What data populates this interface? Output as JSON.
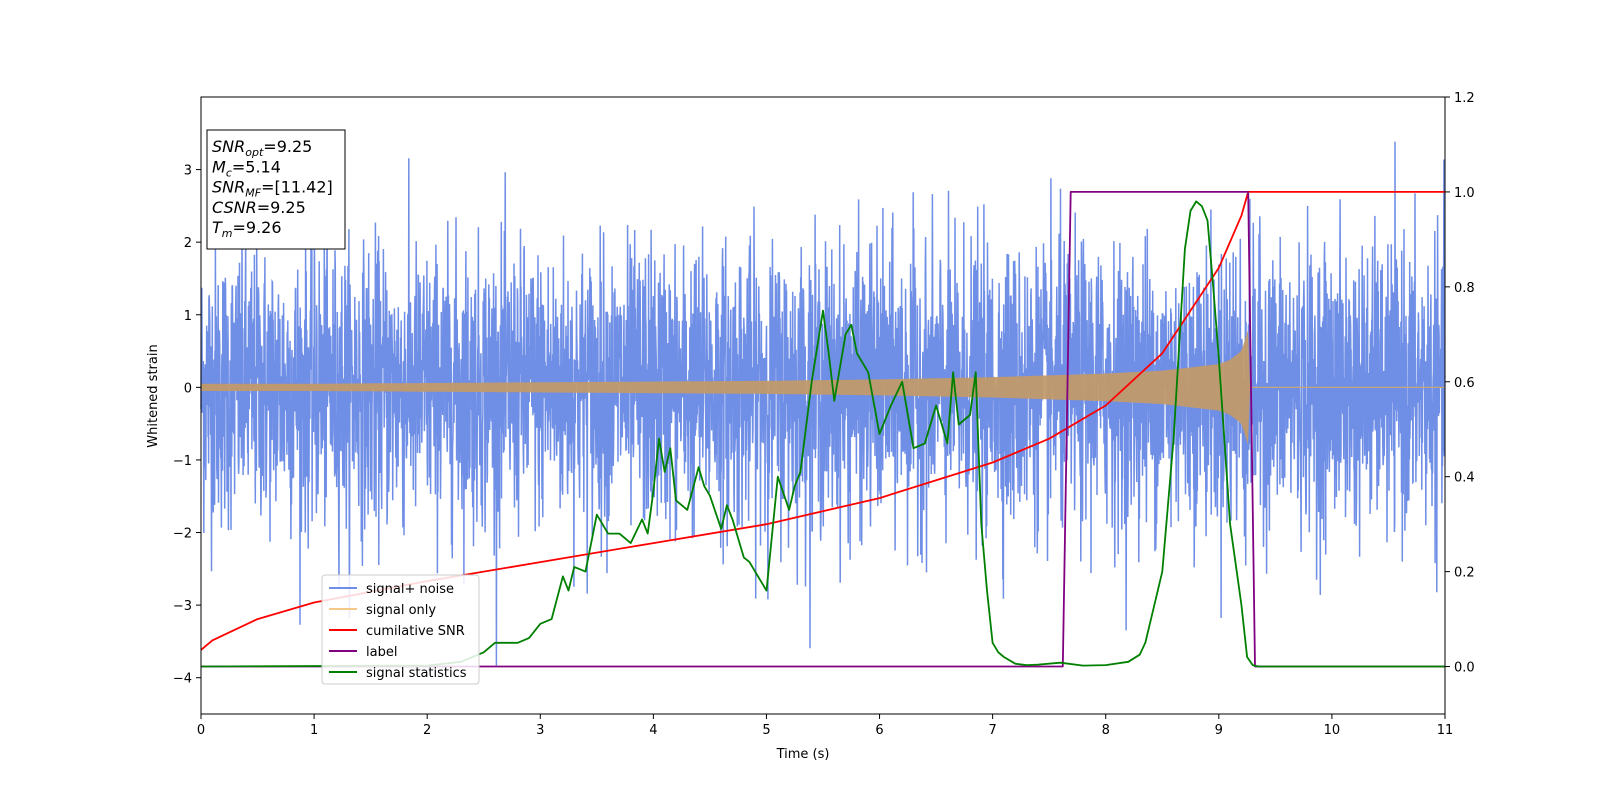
{
  "chart_data": {
    "type": "line",
    "xlabel": "Time (s)",
    "ylabel": "Whitened strain",
    "xlim": [
      0,
      11
    ],
    "ylim": [
      -4.5,
      4.0
    ],
    "y2lim": [
      -0.1,
      1.2
    ],
    "x_ticks": [
      0,
      1,
      2,
      3,
      4,
      5,
      6,
      7,
      8,
      9,
      10,
      11
    ],
    "y_ticks": [
      -4,
      -3,
      -2,
      -1,
      0,
      1,
      2,
      3
    ],
    "y2_ticks": [
      "0.0",
      "0.2",
      "0.4",
      "0.6",
      "0.8",
      "1.0",
      "1.2"
    ],
    "grid": false,
    "legend_position": "lower-left",
    "info_box": {
      "lines": [
        {
          "main": "SNR",
          "sub": "opt",
          "value": "=9.25"
        },
        {
          "main": "M",
          "sub": "c",
          "value": "=5.14"
        },
        {
          "main": "SNR",
          "sub": "MF",
          "value": "=[11.42]"
        },
        {
          "main": "CSNR",
          "sub": "",
          "value": "=9.25"
        },
        {
          "main": "T",
          "sub": "m",
          "value": "=9.26"
        }
      ]
    },
    "series": [
      {
        "name": "signal+ noise",
        "axis": "left",
        "color": "#6f8ee6",
        "noise_std": 0.95,
        "noise_peak": 3.55
      },
      {
        "name": "signal only",
        "axis": "left",
        "color": "#f5c88a",
        "envelope": {
          "x": [
            0,
            1,
            2,
            3,
            4,
            5,
            6,
            7,
            8,
            8.5,
            9,
            9.1,
            9.2,
            9.26,
            9.27,
            11
          ],
          "amplitude": [
            0.05,
            0.05,
            0.06,
            0.07,
            0.08,
            0.09,
            0.11,
            0.14,
            0.19,
            0.23,
            0.32,
            0.38,
            0.5,
            0.8,
            0.0,
            0.0
          ]
        }
      },
      {
        "name": "cumilative SNR",
        "axis": "right",
        "color": "#ff0000",
        "x": [
          0,
          0.1,
          0.5,
          1,
          2,
          3,
          4,
          5,
          6,
          7,
          7.5,
          8,
          8.5,
          9,
          9.2,
          9.26,
          9.27,
          11
        ],
        "y": [
          0.035,
          0.055,
          0.1,
          0.135,
          0.18,
          0.22,
          0.26,
          0.3,
          0.355,
          0.43,
          0.48,
          0.55,
          0.66,
          0.84,
          0.95,
          1.0,
          1.0,
          1.0
        ]
      },
      {
        "name": "label",
        "axis": "right",
        "color": "#800080",
        "x": [
          0,
          7.62,
          7.69,
          9.26,
          9.32,
          11
        ],
        "y": [
          0,
          0,
          1,
          1,
          0,
          0
        ]
      },
      {
        "name": "signal statistics",
        "axis": "right",
        "color": "#008000",
        "x": [
          0,
          2.0,
          2.3,
          2.5,
          2.6,
          2.8,
          2.9,
          3.0,
          3.1,
          3.2,
          3.25,
          3.3,
          3.4,
          3.5,
          3.55,
          3.6,
          3.7,
          3.8,
          3.9,
          3.95,
          4.0,
          4.05,
          4.1,
          4.15,
          4.2,
          4.3,
          4.4,
          4.45,
          4.5,
          4.6,
          4.65,
          4.7,
          4.8,
          4.85,
          4.9,
          5.0,
          5.1,
          5.2,
          5.25,
          5.3,
          5.4,
          5.5,
          5.55,
          5.6,
          5.7,
          5.75,
          5.8,
          5.85,
          5.9,
          6.0,
          6.1,
          6.2,
          6.3,
          6.4,
          6.5,
          6.6,
          6.65,
          6.7,
          6.8,
          6.85,
          6.9,
          6.95,
          7.0,
          7.05,
          7.1,
          7.2,
          7.3,
          7.4,
          7.6,
          7.8,
          8.0,
          8.2,
          8.3,
          8.35,
          8.4,
          8.5,
          8.6,
          8.7,
          8.75,
          8.8,
          8.85,
          8.9,
          8.95,
          9.0,
          9.1,
          9.2,
          9.25,
          9.3,
          9.35,
          11
        ],
        "y": [
          0.0,
          0.002,
          0.01,
          0.03,
          0.05,
          0.05,
          0.06,
          0.09,
          0.1,
          0.19,
          0.16,
          0.21,
          0.2,
          0.32,
          0.3,
          0.28,
          0.28,
          0.26,
          0.31,
          0.28,
          0.37,
          0.48,
          0.41,
          0.46,
          0.35,
          0.33,
          0.42,
          0.38,
          0.36,
          0.29,
          0.34,
          0.31,
          0.23,
          0.22,
          0.2,
          0.16,
          0.4,
          0.33,
          0.38,
          0.41,
          0.6,
          0.75,
          0.66,
          0.56,
          0.7,
          0.72,
          0.66,
          0.64,
          0.62,
          0.49,
          0.55,
          0.6,
          0.46,
          0.47,
          0.55,
          0.47,
          0.62,
          0.51,
          0.53,
          0.62,
          0.3,
          0.16,
          0.05,
          0.03,
          0.02,
          0.006,
          0.003,
          0.004,
          0.008,
          0.002,
          0.003,
          0.01,
          0.025,
          0.05,
          0.1,
          0.2,
          0.48,
          0.88,
          0.96,
          0.98,
          0.97,
          0.94,
          0.8,
          0.65,
          0.3,
          0.13,
          0.02,
          0.003,
          0.0,
          0.0
        ]
      }
    ]
  }
}
